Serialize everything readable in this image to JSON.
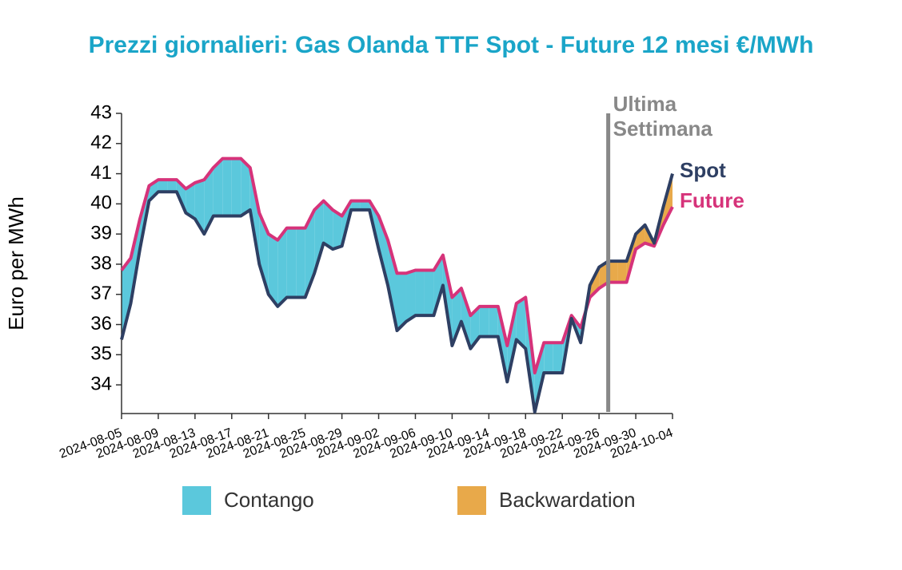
{
  "chart_data": {
    "type": "line",
    "title": "Prezzi giornalieri: Gas Olanda TTF Spot - Future 12 mesi €/MWh",
    "y_label": "Euro per MWh",
    "x": [
      "2024-08-05",
      "2024-08-06",
      "2024-08-07",
      "2024-08-08",
      "2024-08-09",
      "2024-08-10",
      "2024-08-11",
      "2024-08-12",
      "2024-08-13",
      "2024-08-14",
      "2024-08-15",
      "2024-08-16",
      "2024-08-17",
      "2024-08-18",
      "2024-08-19",
      "2024-08-20",
      "2024-08-21",
      "2024-08-22",
      "2024-08-23",
      "2024-08-24",
      "2024-08-25",
      "2024-08-26",
      "2024-08-27",
      "2024-08-28",
      "2024-08-29",
      "2024-08-30",
      "2024-08-31",
      "2024-09-01",
      "2024-09-02",
      "2024-09-03",
      "2024-09-04",
      "2024-09-05",
      "2024-09-06",
      "2024-09-07",
      "2024-09-08",
      "2024-09-09",
      "2024-09-10",
      "2024-09-11",
      "2024-09-12",
      "2024-09-13",
      "2024-09-14",
      "2024-09-15",
      "2024-09-16",
      "2024-09-17",
      "2024-09-18",
      "2024-09-19",
      "2024-09-20",
      "2024-09-21",
      "2024-09-22",
      "2024-09-23",
      "2024-09-24",
      "2024-09-25",
      "2024-09-26",
      "2024-09-27",
      "2024-09-28",
      "2024-09-29",
      "2024-09-30",
      "2024-10-01",
      "2024-10-02",
      "2024-10-03",
      "2024-10-04"
    ],
    "series": [
      {
        "name": "Spot",
        "color": "#2e3f63",
        "values": [
          35.5,
          36.7,
          38.5,
          40.1,
          40.4,
          40.4,
          40.4,
          39.7,
          39.5,
          39.0,
          39.6,
          39.6,
          39.6,
          39.6,
          39.8,
          38.0,
          37.0,
          36.6,
          36.9,
          36.9,
          36.9,
          37.7,
          38.7,
          38.5,
          38.6,
          39.8,
          39.8,
          39.8,
          38.5,
          37.3,
          35.8,
          36.1,
          36.3,
          36.3,
          36.3,
          37.3,
          35.3,
          36.1,
          35.2,
          35.6,
          35.6,
          35.6,
          34.1,
          35.5,
          35.2,
          33.1,
          34.4,
          34.4,
          34.4,
          36.2,
          35.4,
          37.3,
          37.9,
          38.1,
          38.1,
          38.1,
          39.0,
          39.3,
          38.7,
          39.9,
          41.0
        ]
      },
      {
        "name": "Future",
        "color": "#d6337a",
        "values": [
          37.8,
          38.2,
          39.5,
          40.6,
          40.8,
          40.8,
          40.8,
          40.5,
          40.7,
          40.8,
          41.2,
          41.5,
          41.5,
          41.5,
          41.2,
          39.7,
          39.0,
          38.8,
          39.2,
          39.2,
          39.2,
          39.8,
          40.1,
          39.8,
          39.6,
          40.1,
          40.1,
          40.1,
          39.6,
          38.8,
          37.7,
          37.7,
          37.8,
          37.8,
          37.8,
          38.3,
          36.9,
          37.2,
          36.3,
          36.6,
          36.6,
          36.6,
          35.3,
          36.7,
          36.9,
          34.4,
          35.4,
          35.4,
          35.4,
          36.3,
          35.9,
          36.9,
          37.2,
          37.4,
          37.4,
          37.4,
          38.5,
          38.7,
          38.6,
          39.3,
          39.9
        ]
      }
    ],
    "fills": [
      {
        "name": "Contango",
        "color": "#5bc8dc"
      },
      {
        "name": "Backwardation",
        "color": "#e8a94a"
      }
    ],
    "xlim": [
      "2024-08-05",
      "2024-10-04"
    ],
    "xticks": [
      "2024-08-05",
      "2024-08-09",
      "2024-08-13",
      "2024-08-17",
      "2024-08-21",
      "2024-08-25",
      "2024-08-29",
      "2024-09-02",
      "2024-09-06",
      "2024-09-10",
      "2024-09-14",
      "2024-09-18",
      "2024-09-22",
      "2024-09-26",
      "2024-09-30",
      "2024-10-04"
    ],
    "ylim": [
      33.05,
      43
    ],
    "yticks": [
      34,
      35,
      36,
      37,
      38,
      39,
      40,
      41,
      42,
      43
    ],
    "vline": {
      "x": "2024-09-27",
      "label_lines": [
        "Ultima",
        "Settimana"
      ],
      "color": "#888888"
    },
    "title_color": "#1aa5c8"
  }
}
